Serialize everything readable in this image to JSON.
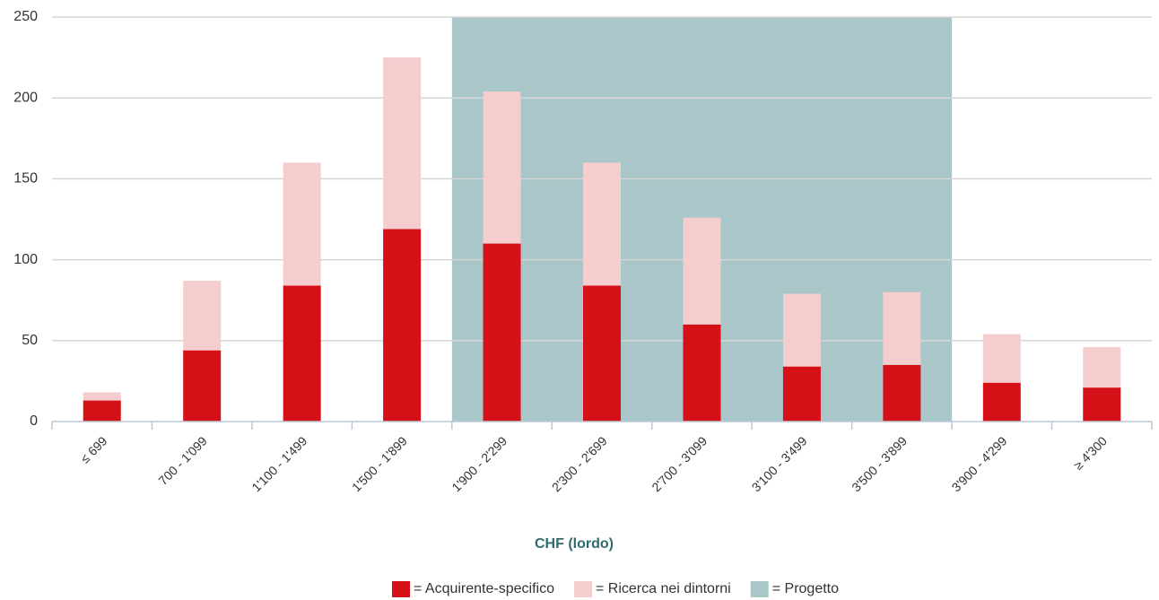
{
  "chart_data": {
    "type": "stacked_bar",
    "xlabel": "CHF (lordo)",
    "categories": [
      "≤ 699",
      "700 - 1'099",
      "1'100 - 1'499",
      "1'500 - 1'899",
      "1'900 - 2'299",
      "2'300 - 2'699",
      "2'700 - 3'099",
      "3'100 - 3'499",
      "3'500 - 3'899",
      "3'900 - 4'299",
      "≥ 4'300"
    ],
    "series": [
      {
        "name": "= Acquirente-specifico",
        "color": "#d51016",
        "values": [
          13,
          44,
          84,
          119,
          110,
          84,
          60,
          34,
          35,
          24,
          21
        ]
      },
      {
        "name": "= Ricerca nei dintorni",
        "color": "#f6cdcf",
        "values": [
          5,
          43,
          76,
          106,
          94,
          76,
          66,
          45,
          45,
          30,
          25
        ]
      }
    ],
    "band": {
      "name": "= Progetto",
      "color": "#a9c6c8",
      "start": "1'900 - 2'299",
      "end": "3'500 - 3'899"
    },
    "ylim": [
      0,
      250
    ],
    "yticks": [
      0,
      50,
      100,
      150,
      200,
      250
    ],
    "grid": true
  }
}
